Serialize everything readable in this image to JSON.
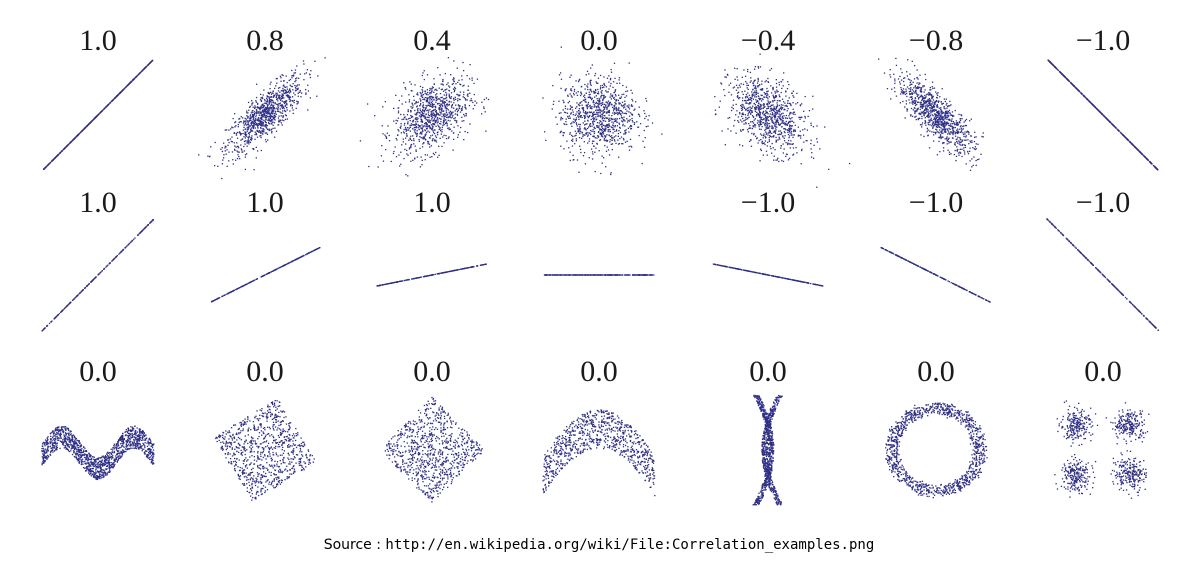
{
  "chart_data": {
    "type": "scatter",
    "point_color": "#2e2f86",
    "grid": false,
    "rows": [
      {
        "panels": [
          {
            "label": "1.0",
            "kind": "correlated",
            "r": 1.0
          },
          {
            "label": "0.8",
            "kind": "correlated",
            "r": 0.8
          },
          {
            "label": "0.4",
            "kind": "correlated",
            "r": 0.4
          },
          {
            "label": "0.0",
            "kind": "correlated",
            "r": 0.0
          },
          {
            "label": "−0.4",
            "kind": "correlated",
            "r": -0.4
          },
          {
            "label": "−0.8",
            "kind": "correlated",
            "r": -0.8
          },
          {
            "label": "−1.0",
            "kind": "correlated",
            "r": -1.0
          }
        ]
      },
      {
        "panels": [
          {
            "label": "1.0",
            "kind": "line",
            "slope": 1.0
          },
          {
            "label": "1.0",
            "kind": "line",
            "slope": 0.5
          },
          {
            "label": "1.0",
            "kind": "line",
            "slope": 0.2
          },
          {
            "label": "",
            "kind": "line",
            "slope": 0.0
          },
          {
            "label": "−1.0",
            "kind": "line",
            "slope": -0.2
          },
          {
            "label": "−1.0",
            "kind": "line",
            "slope": -0.5
          },
          {
            "label": "−1.0",
            "kind": "line",
            "slope": -1.0
          }
        ]
      },
      {
        "panels": [
          {
            "label": "0.0",
            "kind": "wave"
          },
          {
            "label": "0.0",
            "kind": "rotated-square"
          },
          {
            "label": "0.0",
            "kind": "diamond"
          },
          {
            "label": "0.0",
            "kind": "parabola"
          },
          {
            "label": "0.0",
            "kind": "x-shape"
          },
          {
            "label": "0.0",
            "kind": "ring"
          },
          {
            "label": "0.0",
            "kind": "four-clusters"
          }
        ]
      }
    ]
  },
  "caption": {
    "prefix": "Source : ",
    "url": "http://en.wikipedia.org/wiki/File:Correlation_examples.png"
  }
}
